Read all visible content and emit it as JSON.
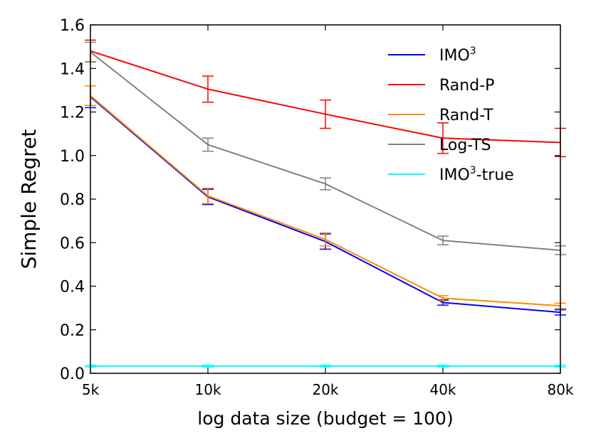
{
  "chart_data": {
    "type": "line",
    "title": "",
    "xlabel": "log data size (budget = 100)",
    "ylabel": "Simple Regret",
    "categories": [
      "5k",
      "10k",
      "20k",
      "40k",
      "80k"
    ],
    "ylim": [
      0.0,
      1.6
    ],
    "yticks": [
      "0.0",
      "0.2",
      "0.4",
      "0.6",
      "0.8",
      "1.0",
      "1.2",
      "1.4",
      "1.6"
    ],
    "grid": false,
    "legend_position": "top-right",
    "series": [
      {
        "name": "IMO",
        "sup": "3",
        "suffix": "",
        "color": "#0000ff",
        "values": [
          1.27,
          0.81,
          0.605,
          0.325,
          0.28
        ],
        "errors": [
          0.05,
          0.035,
          0.035,
          0.012,
          0.012
        ]
      },
      {
        "name": "Rand-P",
        "sup": "",
        "suffix": "",
        "color": "#ff0000",
        "values": [
          1.48,
          1.305,
          1.19,
          1.08,
          1.06
        ],
        "errors": [
          0.05,
          0.06,
          0.065,
          0.07,
          0.065
        ]
      },
      {
        "name": "Rand-T",
        "sup": "",
        "suffix": "",
        "color": "#ff8c00",
        "values": [
          1.275,
          0.815,
          0.615,
          0.345,
          0.31
        ],
        "errors": [
          0.045,
          0.035,
          0.03,
          0.012,
          0.012
        ]
      },
      {
        "name": "Log-TS",
        "sup": "",
        "suffix": "",
        "color": "#808080",
        "values": [
          1.475,
          1.05,
          0.87,
          0.61,
          0.565
        ],
        "errors": [
          0.045,
          0.03,
          0.027,
          0.02,
          0.02
        ]
      },
      {
        "name": "IMO",
        "sup": "3",
        "suffix": "-true",
        "color": "#00ffff",
        "values": [
          0.033,
          0.033,
          0.033,
          0.033,
          0.033
        ],
        "errors": [
          0.004,
          0.004,
          0.004,
          0.004,
          0.004
        ]
      }
    ]
  }
}
